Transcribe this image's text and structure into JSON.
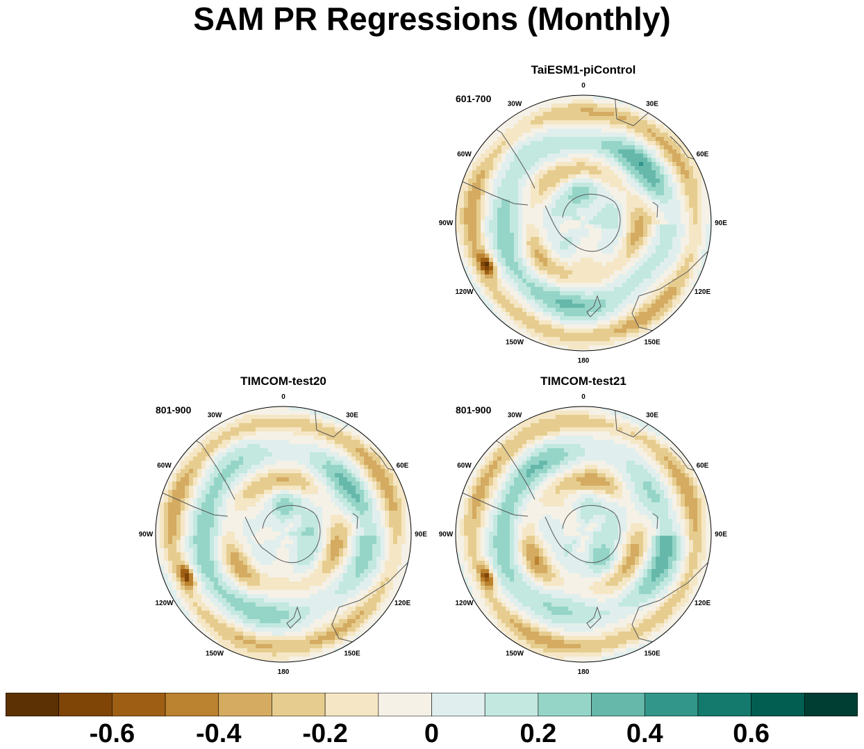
{
  "title": "SAM PR Regressions (Monthly)",
  "panels": [
    {
      "model": "TaiESM1-piControl",
      "period": "601-700"
    },
    {
      "model": "TIMCOM-test20",
      "period": "801-900"
    },
    {
      "model": "TIMCOM-test21",
      "period": "801-900"
    }
  ],
  "lon_labels": [
    "0",
    "30E",
    "60E",
    "90E",
    "120E",
    "150E",
    "180",
    "150W",
    "120W",
    "90W",
    "60W",
    "30W"
  ],
  "colorbar": {
    "colors": [
      "#5c3205",
      "#7f4507",
      "#9e5f14",
      "#bb8230",
      "#d4ab61",
      "#e6cd8f",
      "#f5e7c5",
      "#f5f1e7",
      "#e0efed",
      "#c2e8e0",
      "#95d5c8",
      "#66b9aa",
      "#33968a",
      "#137a6d",
      "#015e51",
      "#003d32"
    ],
    "ticks": [
      "-0.6",
      "-0.4",
      "-0.2",
      "0",
      "0.2",
      "0.4",
      "0.6"
    ]
  },
  "chart_data": {
    "type": "heatmap",
    "projection": "south polar stereographic",
    "title": "SAM PR Regressions (Monthly)",
    "colorbar_range": [
      -0.8,
      0.8
    ],
    "colorbar_interval": 0.1,
    "panels": [
      {
        "title": "TaiESM1-piControl",
        "period": "601-700"
      },
      {
        "title": "TIMCOM-test20",
        "period": "801-900"
      },
      {
        "title": "TIMCOM-test21",
        "period": "801-900"
      }
    ]
  }
}
